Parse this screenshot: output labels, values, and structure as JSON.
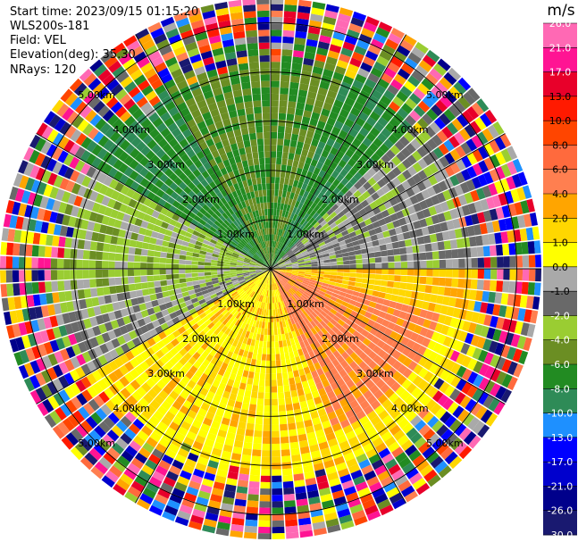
{
  "header": {
    "start_time": "Start time: 2023/09/15 01:15:20",
    "instrument": "WLS200s-181",
    "field": "Field: VEL",
    "elevation": "Elevation(deg): 35.30",
    "nrays": "NRays: 120"
  },
  "chart_data": {
    "type": "heatmap",
    "projection": "polar-ppi",
    "field": "VEL",
    "n_rays": 120,
    "max_range_km": 5.5,
    "range_rings_km": [
      1,
      2,
      3,
      4,
      5
    ],
    "range_ring_labels": [
      "1.00km",
      "2.00km",
      "3.00km",
      "4.00km",
      "5.00km"
    ],
    "spoke_angles_deg": [
      0,
      30,
      60,
      90,
      120,
      150,
      180,
      210,
      240,
      270,
      300,
      330
    ],
    "colorbar": {
      "unit": "m/s",
      "tick_labels": [
        "26.0",
        "21.0",
        "17.0",
        "13.0",
        "10.0",
        "8.0",
        "6.0",
        "4.0",
        "2.0",
        "1.0",
        "0.0",
        "-1.0",
        "-2.0",
        "-4.0",
        "-6.0",
        "-8.0",
        "-10.0",
        "-13.0",
        "-17.0",
        "-21.0",
        "-26.0",
        "-30.0"
      ],
      "colors": [
        "#ff69b4",
        "#ff1493",
        "#e8002a",
        "#ff1a00",
        "#ff4500",
        "#ff6a3d",
        "#ff7f50",
        "#ffa500",
        "#ffd700",
        "#ffff00",
        "#a9a9a9",
        "#696969",
        "#9acd32",
        "#6b8e23",
        "#228b22",
        "#2e8b57",
        "#1e90ff",
        "#0000ff",
        "#0000cd",
        "#00008b",
        "#191970"
      ]
    },
    "wind_pattern": {
      "toward_sectors": "north-west and north (negative, greens)",
      "away_sectors": "south and south-east (positive, yellows/oranges)",
      "noise_beyond_km": 4.3
    }
  }
}
